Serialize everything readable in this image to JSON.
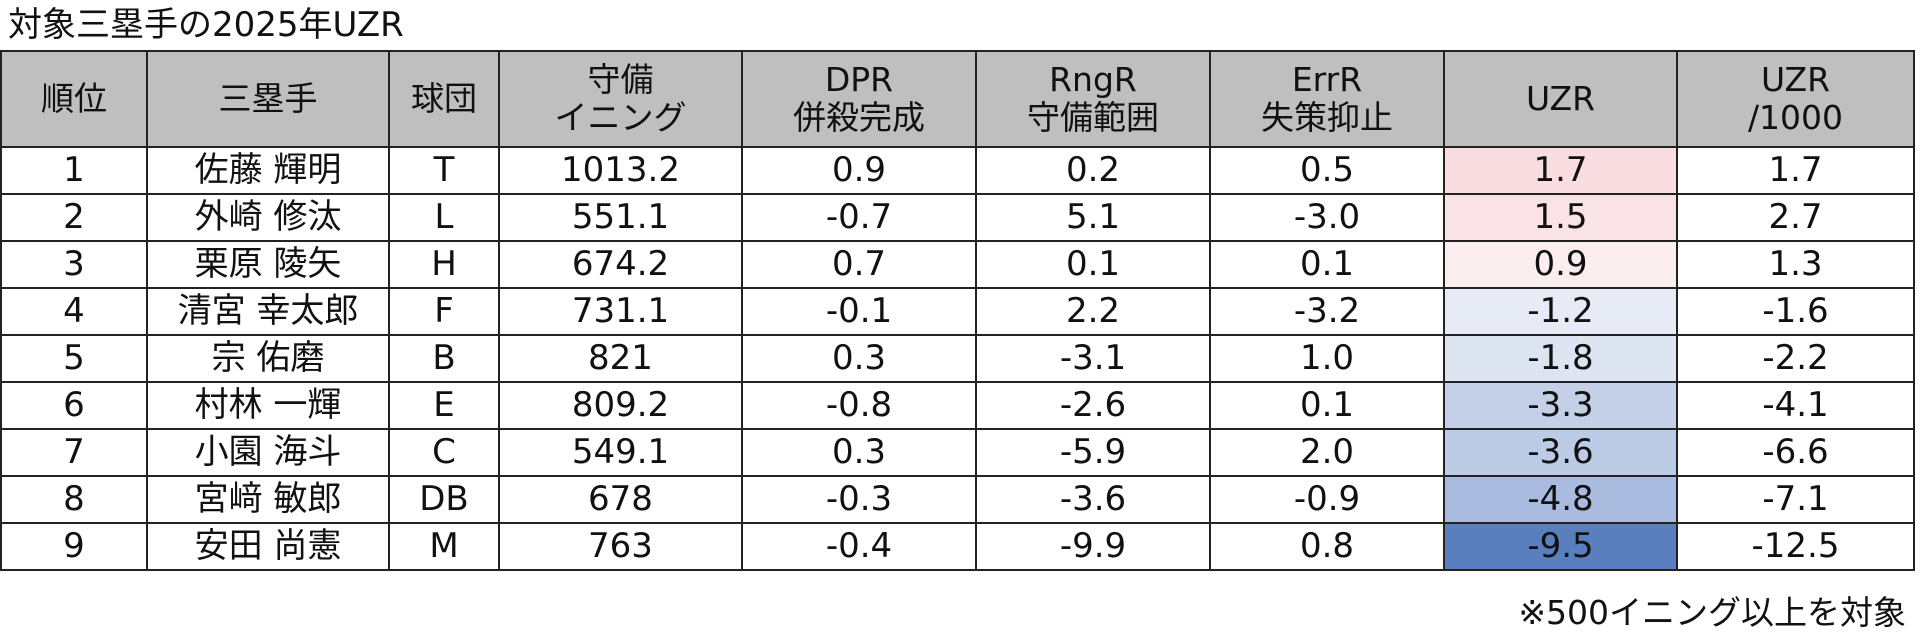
{
  "title": "対象三塁手の2025年UZR",
  "table": {
    "columns": [
      [
        "順位"
      ],
      [
        "三塁手"
      ],
      [
        "球団"
      ],
      [
        "守備",
        "イニング"
      ],
      [
        "DPR",
        "併殺完成"
      ],
      [
        "RngR",
        "守備範囲"
      ],
      [
        "ErrR",
        "失策抑止"
      ],
      [
        "UZR"
      ],
      [
        "UZR",
        "/1000"
      ]
    ],
    "rows": [
      [
        "1",
        "佐藤 輝明",
        "T",
        "1013.2",
        "0.9",
        "0.2",
        "0.5",
        "1.7",
        "1.7"
      ],
      [
        "2",
        "外崎 修汰",
        "L",
        "551.1",
        "-0.7",
        "5.1",
        "-3.0",
        "1.5",
        "2.7"
      ],
      [
        "3",
        "栗原 陵矢",
        "H",
        "674.2",
        "0.7",
        "0.1",
        "0.1",
        "0.9",
        "1.3"
      ],
      [
        "4",
        "清宮 幸太郎",
        "F",
        "731.1",
        "-0.1",
        "2.2",
        "-3.2",
        "-1.2",
        "-1.6"
      ],
      [
        "5",
        "宗 佑磨",
        "B",
        "821",
        "0.3",
        "-3.1",
        "1.0",
        "-1.8",
        "-2.2"
      ],
      [
        "6",
        "村林 一輝",
        "E",
        "809.2",
        "-0.8",
        "-2.6",
        "0.1",
        "-3.3",
        "-4.1"
      ],
      [
        "7",
        "小園 海斗",
        "C",
        "549.1",
        "0.3",
        "-5.9",
        "2.0",
        "-3.6",
        "-6.6"
      ],
      [
        "8",
        "宮﨑 敏郎",
        "DB",
        "678",
        "-0.3",
        "-3.6",
        "-0.9",
        "-4.8",
        "-7.1"
      ],
      [
        "9",
        "安田 尚憲",
        "M",
        "763",
        "-0.4",
        "-9.9",
        "0.8",
        "-9.5",
        "-12.5"
      ]
    ],
    "highlight_column": 7,
    "highlight_colors": [
      "#f9dde0",
      "#fae3e6",
      "#fbeeee",
      "#e6ebf5",
      "#dde4f2",
      "#c3d0e8",
      "#bccbe6",
      "#a9bcdf",
      "#5a7fbf"
    ],
    "header_color": "#bfbfbf"
  },
  "footnote": "※500イニング以上を対象"
}
